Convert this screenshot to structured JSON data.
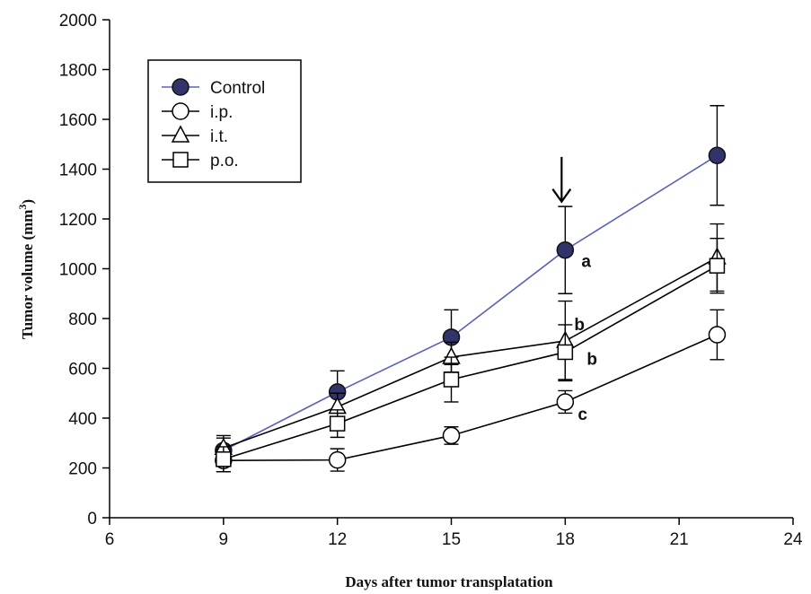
{
  "chart_data": {
    "type": "line",
    "xlabel": "Days after tumor transplatation",
    "ylabel_main": "Tumor volume (mm",
    "ylabel_sup": "3",
    "ylabel_end": ")",
    "xlim": [
      6,
      24
    ],
    "ylim": [
      0,
      2000
    ],
    "xticks": [
      6,
      9,
      12,
      15,
      18,
      21,
      24
    ],
    "yticks": [
      0,
      200,
      400,
      600,
      800,
      1000,
      1200,
      1400,
      1600,
      1800,
      2000
    ],
    "grid": false,
    "legend_position": "top-left",
    "series": [
      {
        "name": "Control",
        "marker": "filled-circle",
        "line_color": "#5a62b8",
        "marker_color": "#33336b",
        "x": [
          9,
          12,
          15,
          18,
          22
        ],
        "y": [
          270,
          505,
          725,
          1075,
          1455
        ],
        "err": [
          50,
          85,
          110,
          175,
          200
        ]
      },
      {
        "name": "i.p.",
        "marker": "open-circle",
        "line_color": "#000000",
        "marker_color": "#000000",
        "x": [
          9,
          12,
          15,
          18,
          22
        ],
        "y": [
          230,
          232,
          330,
          465,
          735
        ],
        "err": [
          45,
          45,
          35,
          45,
          100
        ]
      },
      {
        "name": "i.t.",
        "marker": "open-triangle",
        "line_color": "#000000",
        "marker_color": "#000000",
        "x": [
          9,
          12,
          15,
          18,
          22
        ],
        "y": [
          280,
          445,
          645,
          710,
          1045
        ],
        "err": [
          50,
          55,
          60,
          160,
          135
        ]
      },
      {
        "name": "p.o.",
        "marker": "open-square",
        "line_color": "#000000",
        "marker_color": "#000000",
        "x": [
          9,
          12,
          15,
          18,
          22
        ],
        "y": [
          235,
          378,
          555,
          665,
          1012
        ],
        "err": [
          50,
          55,
          90,
          110,
          110
        ]
      }
    ],
    "annotations": [
      {
        "text": "a",
        "x": 18,
        "y": 1075
      },
      {
        "text": "b",
        "x": 18,
        "y": 710
      },
      {
        "text": "b",
        "x": 18,
        "y": 665
      },
      {
        "text": "c",
        "x": 18,
        "y": 465
      }
    ],
    "arrow": {
      "x": 18,
      "y_top": 1395,
      "y_bottom": 1320
    }
  }
}
